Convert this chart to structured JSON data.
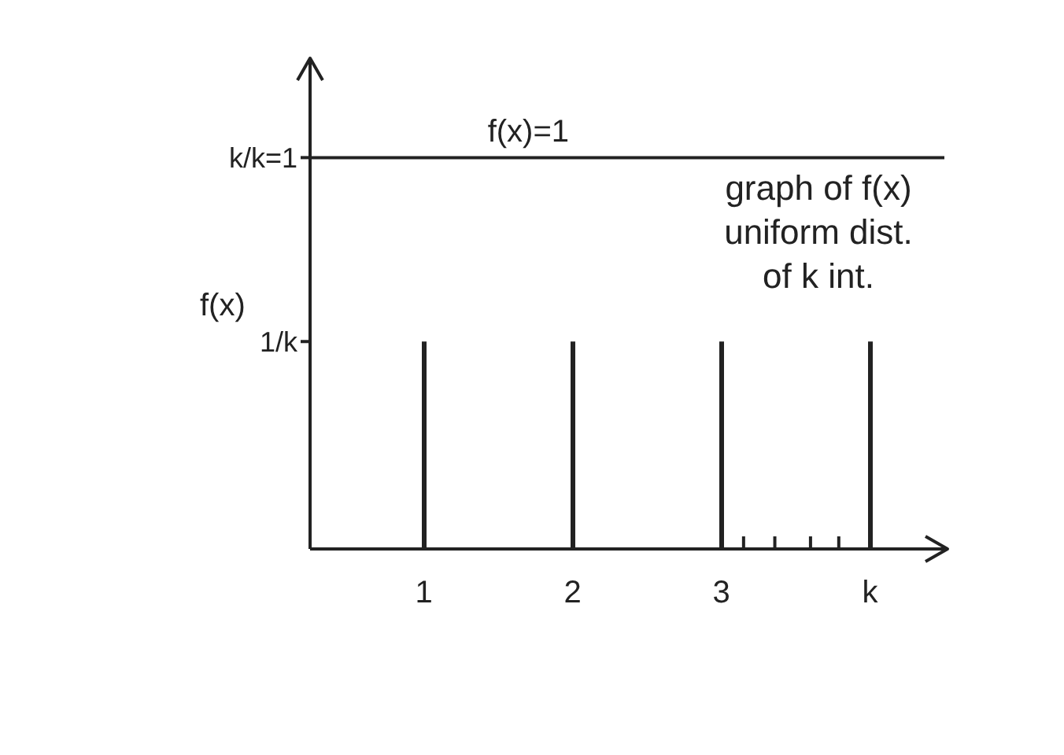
{
  "chart_data": {
    "type": "bar",
    "categories": [
      "1",
      "2",
      "3",
      "k"
    ],
    "values": [
      0.53,
      0.53,
      0.53,
      0.53
    ],
    "color": "#222222",
    "ylabel": "f(x)",
    "ylim": [
      0,
      1.25
    ],
    "yticks": [
      {
        "value": 0.53,
        "label": "1/k"
      },
      {
        "value": 1,
        "label": "k/k=1"
      }
    ],
    "ref_lines": [
      {
        "axis": "y",
        "value": 1,
        "label": "f(x)=1",
        "color": "#222222"
      }
    ],
    "annotations": [
      "graph of f(x) uniform dist. of k int."
    ]
  }
}
